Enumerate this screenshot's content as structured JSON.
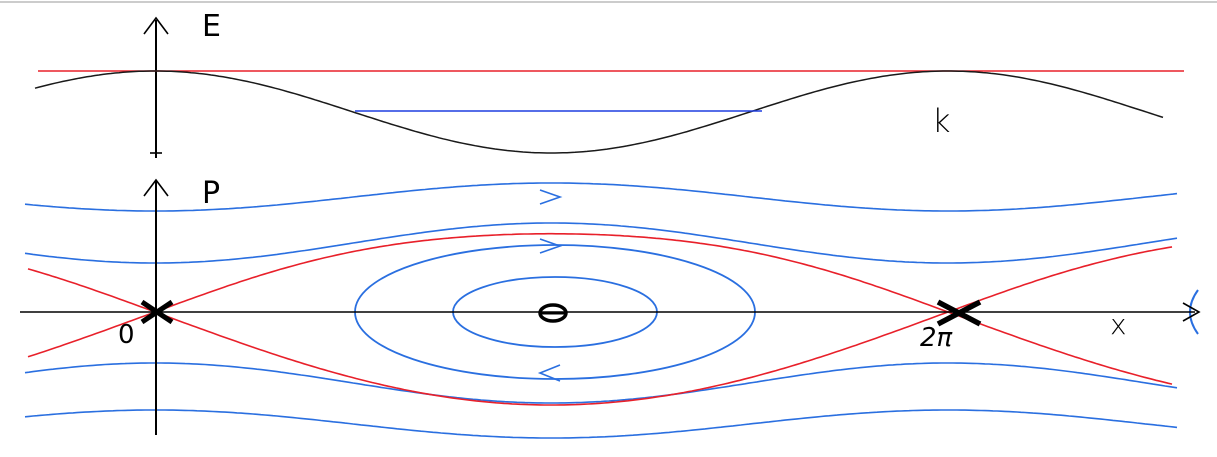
{
  "energy_plot": {
    "axis_label": "E",
    "curve_label": "k"
  },
  "phase_plot": {
    "axis_label": "P",
    "x_axis_label": "x",
    "origin_label": "0",
    "two_pi_label": "2π",
    "center_label": "0"
  },
  "colors": {
    "axis": "#000000",
    "separatrix": "#e8202a",
    "orbit": "#2a6fe0",
    "potential": "#1a1a1a",
    "energy_level": "#1f3fe0"
  }
}
